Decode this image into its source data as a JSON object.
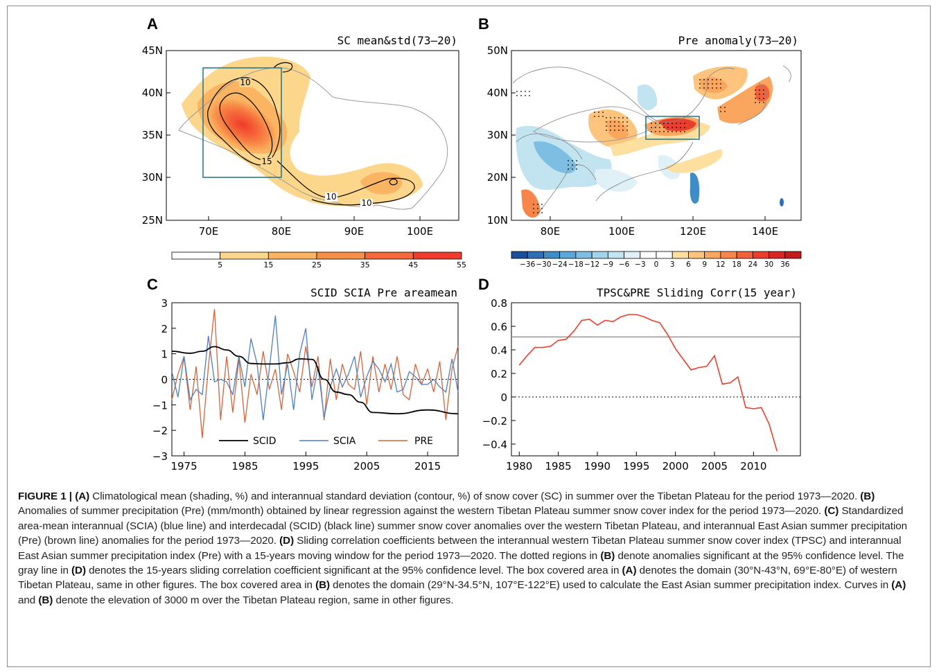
{
  "panels": {
    "A": {
      "label": "A",
      "title": "SC mean&std(73–20)",
      "y_ticks": [
        "45N",
        "40N",
        "35N",
        "30N",
        "25N"
      ],
      "x_ticks": [
        "70E",
        "80E",
        "90E",
        "100E"
      ],
      "contour_labels": [
        "10",
        "15",
        "10",
        "10"
      ],
      "colorbar": {
        "labels": [
          "5",
          "15",
          "25",
          "35",
          "45",
          "55"
        ],
        "colors": [
          "#ffffff",
          "#fcd68a",
          "#fbb462",
          "#f88f48",
          "#f5683a",
          "#ef3b2c"
        ]
      }
    },
    "B": {
      "label": "B",
      "title": "Pre anomaly(73–20)",
      "y_ticks": [
        "50N",
        "40N",
        "30N",
        "20N",
        "10N"
      ],
      "x_ticks": [
        "80E",
        "100E",
        "120E",
        "140E"
      ],
      "colorbar": {
        "labels": [
          "−36",
          "−30",
          "−24",
          "−18",
          "−12",
          "−9",
          "−6",
          "−3",
          "0",
          "3",
          "6",
          "9",
          "12",
          "18",
          "24",
          "30",
          "36"
        ],
        "colors": [
          "#1b4f9c",
          "#2b6fb4",
          "#3e8dc7",
          "#5aa6d6",
          "#7dbee2",
          "#a1d3ea",
          "#c2e4f1",
          "#dff1f7",
          "#ffffff",
          "#ffffff",
          "#fde0a0",
          "#fcc47c",
          "#fba65f",
          "#f8854a",
          "#f3613b",
          "#ea3d2e",
          "#d92422",
          "#c41a1a"
        ]
      }
    },
    "C": {
      "label": "C",
      "title": "SCID SCIA Pre areamean",
      "y_ticks": [
        "3",
        "2",
        "1",
        "0",
        "−1",
        "−2",
        "−3"
      ],
      "x_ticks": [
        "1975",
        "1985",
        "1995",
        "2005",
        "2015"
      ],
      "legend": [
        "SCID",
        "SCIA",
        "PRE"
      ]
    },
    "D": {
      "label": "D",
      "title": "TPSC&PRE Sliding Corr(15 year)",
      "y_ticks": [
        "0.8",
        "0.6",
        "0.4",
        "0.2",
        "0",
        "−0.2",
        "−0.4"
      ],
      "x_ticks": [
        "1980",
        "1985",
        "1990",
        "1995",
        "2000",
        "2005",
        "2010"
      ]
    }
  },
  "colors": {
    "scid": "#000000",
    "scia": "#4a7fc1",
    "pre": "#d4623a",
    "corr": "#f03a2a",
    "sig_line": "#777777",
    "box": "#2a7a90"
  },
  "chart_data": [
    {
      "type": "line",
      "title": "SCID SCIA Pre areamean",
      "xlim": [
        1973,
        2020
      ],
      "ylim": [
        -3,
        3
      ],
      "series": [
        {
          "name": "SCID",
          "x": [
            1973,
            1976,
            1978,
            1980,
            1982,
            1984,
            1986,
            1988,
            1990,
            1992,
            1994,
            1996,
            1998,
            2000,
            2002,
            2004,
            2006,
            2010,
            2015,
            2020
          ],
          "values": [
            1.1,
            1.02,
            1.1,
            1.28,
            1.15,
            0.9,
            0.62,
            0.6,
            0.6,
            0.65,
            0.8,
            0.78,
            0.0,
            -0.5,
            -0.6,
            -0.9,
            -1.3,
            -1.35,
            -1.2,
            -1.35
          ]
        },
        {
          "name": "SCIA",
          "x": [
            1973,
            1974,
            1975,
            1976,
            1977,
            1978,
            1979,
            1980,
            1981,
            1982,
            1983,
            1984,
            1985,
            1986,
            1987,
            1988,
            1989,
            1990,
            1991,
            1992,
            1993,
            1994,
            1995,
            1996,
            1997,
            1998,
            1999,
            2000,
            2001,
            2002,
            2003,
            2004,
            2005,
            2006,
            2007,
            2008,
            2009,
            2010,
            2011,
            2012,
            2013,
            2014,
            2015,
            2016,
            2017,
            2018,
            2019,
            2020
          ],
          "values": [
            0.3,
            -0.7,
            0.9,
            -0.8,
            -0.4,
            -0.6,
            1.7,
            -0.1,
            0.0,
            -0.1,
            -0.6,
            0.9,
            -0.3,
            1.6,
            0.6,
            -1.6,
            0.4,
            2.5,
            -0.6,
            0.6,
            -1.2,
            1.0,
            2.0,
            -0.8,
            0.5,
            -1.5,
            -0.3,
            0.4,
            -0.3,
            0.2,
            0.9,
            -0.7,
            0.1,
            0.7,
            0.4,
            -0.1,
            0.6,
            -0.5,
            -0.4,
            0.3,
            0.1,
            -0.2,
            -0.2,
            0.0,
            -0.3,
            -0.5,
            0.8,
            -0.5
          ]
        },
        {
          "name": "PRE",
          "x": [
            1973,
            1974,
            1975,
            1976,
            1977,
            1978,
            1979,
            1980,
            1981,
            1982,
            1983,
            1984,
            1985,
            1986,
            1987,
            1988,
            1989,
            1990,
            1991,
            1992,
            1993,
            1994,
            1995,
            1996,
            1997,
            1998,
            1999,
            2000,
            2001,
            2002,
            2003,
            2004,
            2005,
            2006,
            2007,
            2008,
            2009,
            2010,
            2011,
            2012,
            2013,
            2014,
            2015,
            2016,
            2017,
            2018,
            2019,
            2020
          ],
          "values": [
            -0.8,
            0.2,
            0.9,
            -1.2,
            0.5,
            -2.3,
            0.5,
            2.75,
            -1.6,
            0.9,
            -1.3,
            0.8,
            -1.7,
            0.2,
            -0.6,
            1.1,
            -0.4,
            0.4,
            -1.2,
            1.0,
            0.3,
            -0.5,
            1.3,
            -0.3,
            0.9,
            -1.6,
            0.8,
            -0.8,
            0.6,
            -0.2,
            -0.4,
            1.1,
            -1.0,
            0.9,
            -0.5,
            0.6,
            -0.4,
            0.9,
            -0.6,
            -0.8,
            0.6,
            -0.2,
            0.4,
            -0.5,
            0.7,
            -1.6,
            0.4,
            1.3
          ]
        }
      ]
    },
    {
      "type": "line",
      "title": "TPSC&PRE Sliding Corr(15 year)",
      "xlim": [
        1979,
        2016
      ],
      "ylim": [
        -0.5,
        0.8
      ],
      "significance_line": 0.51,
      "series": [
        {
          "name": "",
          "x": [
            1980,
            1981,
            1982,
            1983,
            1984,
            1985,
            1986,
            1987,
            1988,
            1989,
            1990,
            1991,
            1992,
            1993,
            1994,
            1995,
            1996,
            1997,
            1998,
            1999,
            2000,
            2001,
            2002,
            2003,
            2004,
            2005,
            2006,
            2007,
            2008,
            2009,
            2010,
            2011,
            2012,
            2013
          ],
          "values": [
            0.27,
            0.35,
            0.42,
            0.42,
            0.43,
            0.48,
            0.49,
            0.56,
            0.65,
            0.66,
            0.61,
            0.65,
            0.64,
            0.68,
            0.7,
            0.7,
            0.68,
            0.65,
            0.63,
            0.53,
            0.41,
            0.32,
            0.23,
            0.25,
            0.26,
            0.35,
            0.11,
            0.12,
            0.17,
            -0.09,
            -0.1,
            -0.09,
            -0.23,
            -0.46
          ]
        }
      ]
    }
  ],
  "caption": {
    "fig_label": "FIGURE 1 | ",
    "a_label": "(A)",
    "a_text": " Climatological mean (shading, %) and interannual standard deviation (contour, %) of snow cover (SC) in summer over the Tibetan Plateau for the period 1973—2020. ",
    "b_label": "(B)",
    "b_text": " Anomalies of summer precipitation (Pre) (mm/month) obtained by linear regression against the western Tibetan Plateau summer snow cover index for the period 1973—2020. ",
    "c_label": "(C)",
    "c_text": " Standardized area-mean interannual (SCIA) (blue line) and interdecadal (SCID) (black line) summer snow cover anomalies over the western Tibetan Plateau, and interannual East Asian summer precipitation (Pre) (brown line) anomalies for the period 1973—2020. ",
    "d_label": "(D)",
    "d_text": " Sliding correlation coefficients between the interannual western Tibetan Plateau summer snow cover index (TPSC) and interannual East Asian summer precipitation index (Pre) with a 15-years moving window for the period 1973—2020. The dotted regions in ",
    "b2_label": "(B)",
    "t2": " denote anomalies significant at the 95% confidence level. The gray line in ",
    "d2_label": "(D)",
    "t3": " denotes the 15-years sliding correlation coefficient significant at the 95% confidence level. The box covered area in ",
    "a2_label": "(A)",
    "t4": " denotes the domain (30°N-43°N, 69°E-80°E) of western Tibetan Plateau, same in other figures. The box covered area in ",
    "b3_label": "(B)",
    "t5": " denotes the domain (29°N-34.5°N, 107°E-122°E) used to calculate the East Asian summer precipitation index. Curves in ",
    "a3_label": "(A)",
    "t6": " and ",
    "b4_label": "(B)",
    "t7": " denote the elevation of 3000 m over the Tibetan Plateau region, same in other figures."
  }
}
